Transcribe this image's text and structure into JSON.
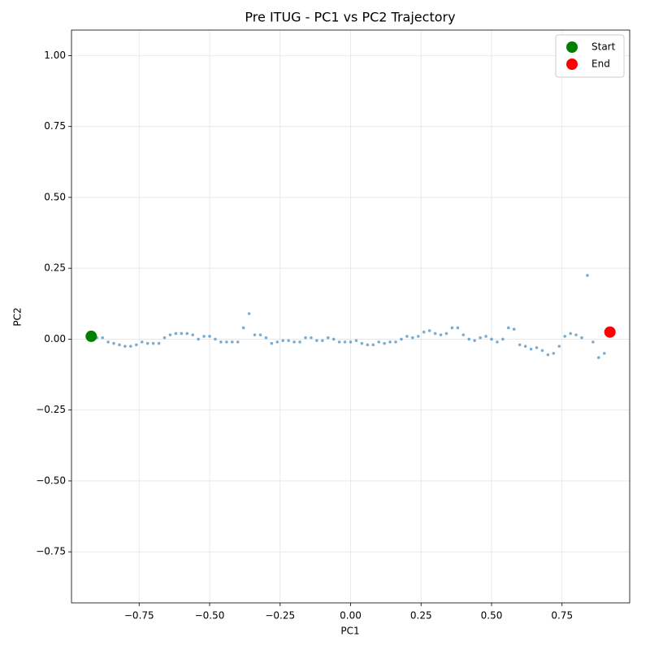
{
  "chart_data": {
    "type": "scatter",
    "title": "Pre ITUG - PC1 vs PC2 Trajectory",
    "xlabel": "PC1",
    "ylabel": "PC2",
    "xlim": [
      -0.99,
      0.99
    ],
    "ylim": [
      -0.93,
      1.09
    ],
    "xticks": [
      {
        "value": -0.75,
        "label": "−0.75"
      },
      {
        "value": -0.5,
        "label": "−0.50"
      },
      {
        "value": -0.25,
        "label": "−0.25"
      },
      {
        "value": 0,
        "label": "0.00"
      },
      0.25,
      {
        "value": 0.5,
        "label": "0.50"
      },
      0.75
    ],
    "yticks": [
      {
        "value": -0.75,
        "label": "−0.75"
      },
      {
        "value": -0.5,
        "label": "−0.50"
      },
      {
        "value": -0.25,
        "label": "−0.25"
      },
      {
        "value": 0,
        "label": "0.00"
      },
      0.25,
      {
        "value": 0.5,
        "label": "0.50"
      },
      0.75,
      {
        "value": 1,
        "label": "1.00"
      }
    ],
    "grid": true,
    "legend": "upper right",
    "series": [
      {
        "color": "#1f77b4",
        "x": [
          -0.9,
          -0.88,
          -0.86,
          -0.84,
          -0.82,
          -0.8,
          -0.78,
          -0.76,
          -0.74,
          -0.72,
          -0.7,
          -0.68,
          -0.66,
          -0.64,
          -0.62,
          -0.6,
          -0.58,
          -0.56,
          -0.54,
          -0.52,
          -0.5,
          -0.48,
          -0.46,
          -0.44,
          -0.42,
          -0.4,
          -0.38,
          -0.36,
          -0.34,
          -0.32,
          -0.3,
          -0.28,
          -0.26,
          -0.24,
          -0.22,
          -0.2,
          -0.18,
          -0.16,
          -0.14,
          -0.12,
          -0.1,
          -0.08,
          -0.06,
          -0.04,
          -0.02,
          0.0,
          0.02,
          0.04,
          0.06,
          0.08,
          0.1,
          0.12,
          0.14,
          0.16,
          0.18,
          0.2,
          0.22,
          0.24,
          0.26,
          0.28,
          0.3,
          0.32,
          0.34,
          0.36,
          0.38,
          0.4,
          0.42,
          0.44,
          0.46,
          0.48,
          0.5,
          0.52,
          0.54,
          0.56,
          0.58,
          0.6,
          0.62,
          0.64,
          0.66,
          0.68,
          0.7,
          0.72,
          0.74,
          0.76,
          0.78,
          0.8,
          0.82,
          0.84,
          0.86,
          0.88,
          0.9
        ],
        "values": [
          0.005,
          0.005,
          -0.01,
          -0.015,
          -0.02,
          -0.025,
          -0.025,
          -0.02,
          -0.01,
          -0.015,
          -0.015,
          -0.015,
          0.005,
          0.015,
          0.02,
          0.02,
          0.02,
          0.015,
          0.0,
          0.01,
          0.01,
          0.0,
          -0.01,
          -0.01,
          -0.01,
          -0.01,
          0.04,
          0.09,
          0.015,
          0.015,
          0.005,
          -0.015,
          -0.01,
          -0.005,
          -0.005,
          -0.01,
          -0.01,
          0.005,
          0.005,
          -0.005,
          -0.005,
          0.005,
          0.0,
          -0.01,
          -0.01,
          -0.01,
          -0.005,
          -0.015,
          -0.02,
          -0.02,
          -0.01,
          -0.015,
          -0.01,
          -0.01,
          0.0,
          0.01,
          0.005,
          0.01,
          0.025,
          0.03,
          0.02,
          0.015,
          0.02,
          0.04,
          0.04,
          0.015,
          0.0,
          -0.005,
          0.005,
          0.01,
          0.0,
          -0.01,
          0.0,
          0.04,
          0.035,
          -0.02,
          -0.025,
          -0.035,
          -0.03,
          -0.04,
          -0.055,
          -0.05,
          -0.025,
          0.01,
          0.02,
          0.015,
          0.005,
          0.225,
          -0.01,
          -0.065,
          -0.05
        ]
      },
      {
        "name": "Start",
        "color": "green",
        "x": [
          -0.92
        ],
        "values": [
          0.01
        ]
      },
      {
        "name": "End",
        "color": "red",
        "x": [
          0.92
        ],
        "values": [
          0.025
        ]
      }
    ]
  }
}
